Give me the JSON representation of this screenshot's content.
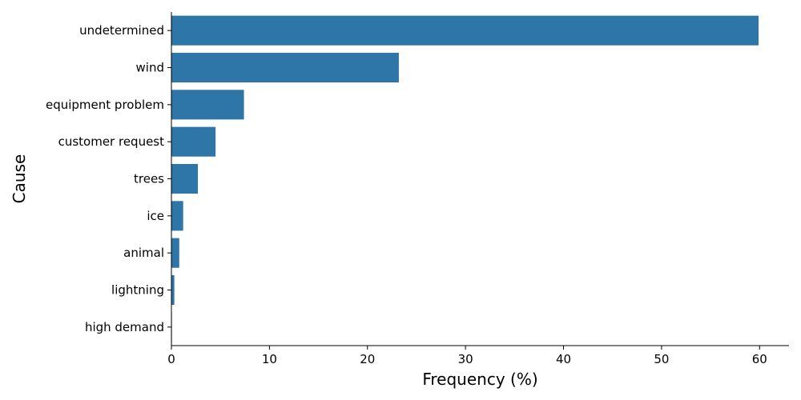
{
  "chart_data": {
    "type": "bar",
    "orientation": "horizontal",
    "categories": [
      "undetermined",
      "wind",
      "equipment problem",
      "customer request",
      "trees",
      "ice",
      "animal",
      "lightning",
      "high demand"
    ],
    "values": [
      59.9,
      23.2,
      7.4,
      4.5,
      2.7,
      1.2,
      0.8,
      0.3,
      0.05
    ],
    "xlabel": "Frequency (%)",
    "ylabel": "Cause",
    "xlim": [
      0,
      63
    ],
    "xticks": [
      0,
      10,
      20,
      30,
      40,
      50,
      60
    ],
    "bar_color": "#2e75a8",
    "grid": false
  }
}
